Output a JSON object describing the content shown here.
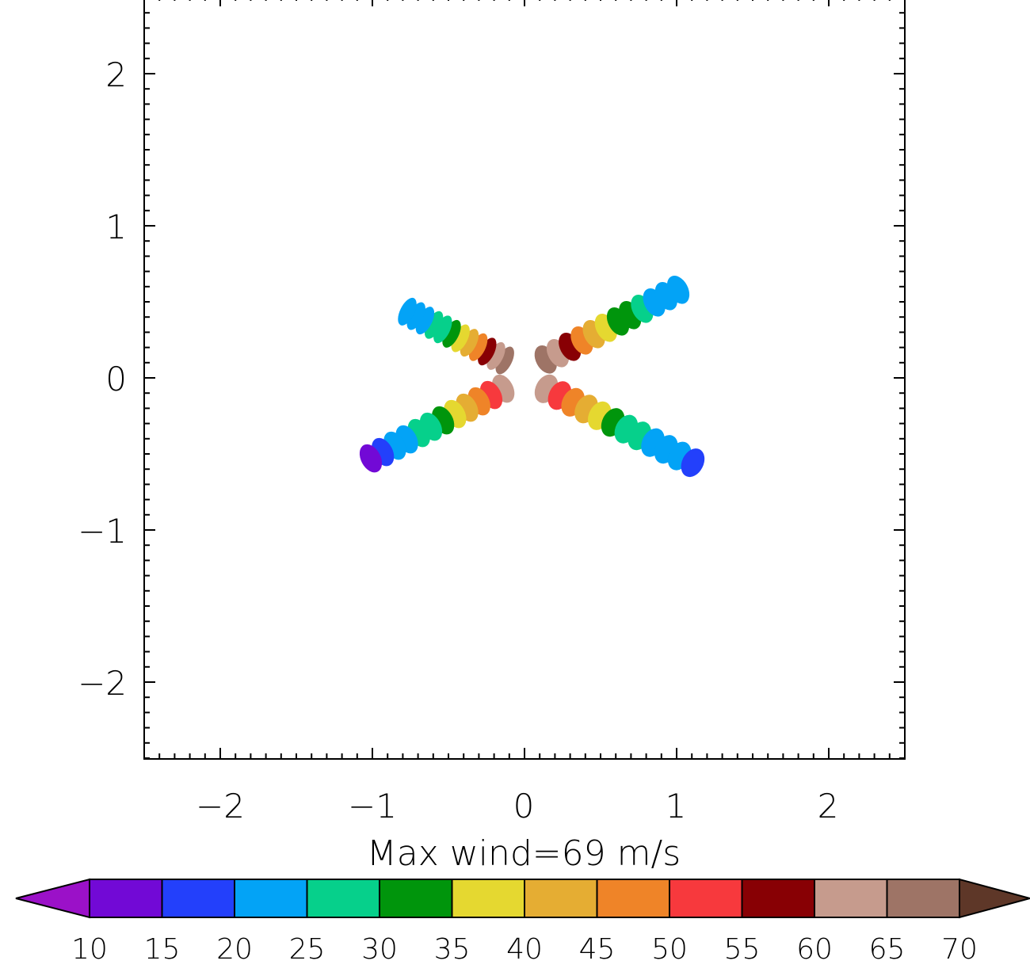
{
  "chart_data": {
    "type": "heatmap",
    "title": "",
    "xlabel": "",
    "ylabel": "",
    "xlim": [
      -2.5,
      2.5
    ],
    "ylim": [
      -2.5,
      2.5
    ],
    "x_ticks": [
      "−2",
      "−1",
      "0",
      "1",
      "2"
    ],
    "y_ticks": [
      "2",
      "1",
      "0",
      "−1",
      "−2"
    ],
    "caption": "Max wind=69 m/s",
    "colorbar": {
      "levels": [
        10,
        15,
        20,
        25,
        30,
        35,
        40,
        45,
        50,
        55,
        60,
        65,
        70
      ],
      "labels": [
        "10",
        "15",
        "20",
        "25",
        "30",
        "35",
        "40",
        "45",
        "50",
        "55",
        "60",
        "65",
        "70"
      ],
      "colors": [
        "#7209d6",
        "#2340fb",
        "#03a3f6",
        "#06d08b",
        "#00950c",
        "#e5d830",
        "#e5ad33",
        "#ef8428",
        "#f7393d",
        "#880004",
        "#c69b8d",
        "#9e7466"
      ],
      "under_color": "#9b11c8",
      "over_color": "#5e3728"
    },
    "arms": [
      {
        "name": "northeast",
        "start": [
          0.1,
          0.1
        ],
        "end": [
          1.05,
          0.6
        ],
        "values": [
          69,
          64,
          55,
          48,
          43,
          38,
          33,
          30,
          28,
          24,
          22,
          20
        ]
      },
      {
        "name": "northwest",
        "start": [
          -0.1,
          0.1
        ],
        "end": [
          -0.8,
          0.45
        ],
        "values": [
          67,
          62,
          55,
          48,
          42,
          37,
          32,
          29,
          27,
          23,
          21,
          20
        ]
      },
      {
        "name": "southwest",
        "start": [
          -0.1,
          -0.05
        ],
        "end": [
          -1.05,
          -0.55
        ],
        "values": [
          60,
          52,
          47,
          42,
          38,
          33,
          29,
          26,
          23,
          21,
          18,
          12
        ]
      },
      {
        "name": "southeast",
        "start": [
          0.1,
          -0.05
        ],
        "end": [
          1.15,
          -0.58
        ],
        "values": [
          62,
          54,
          48,
          43,
          37,
          33,
          28,
          26,
          23,
          22,
          21,
          18
        ]
      }
    ]
  }
}
